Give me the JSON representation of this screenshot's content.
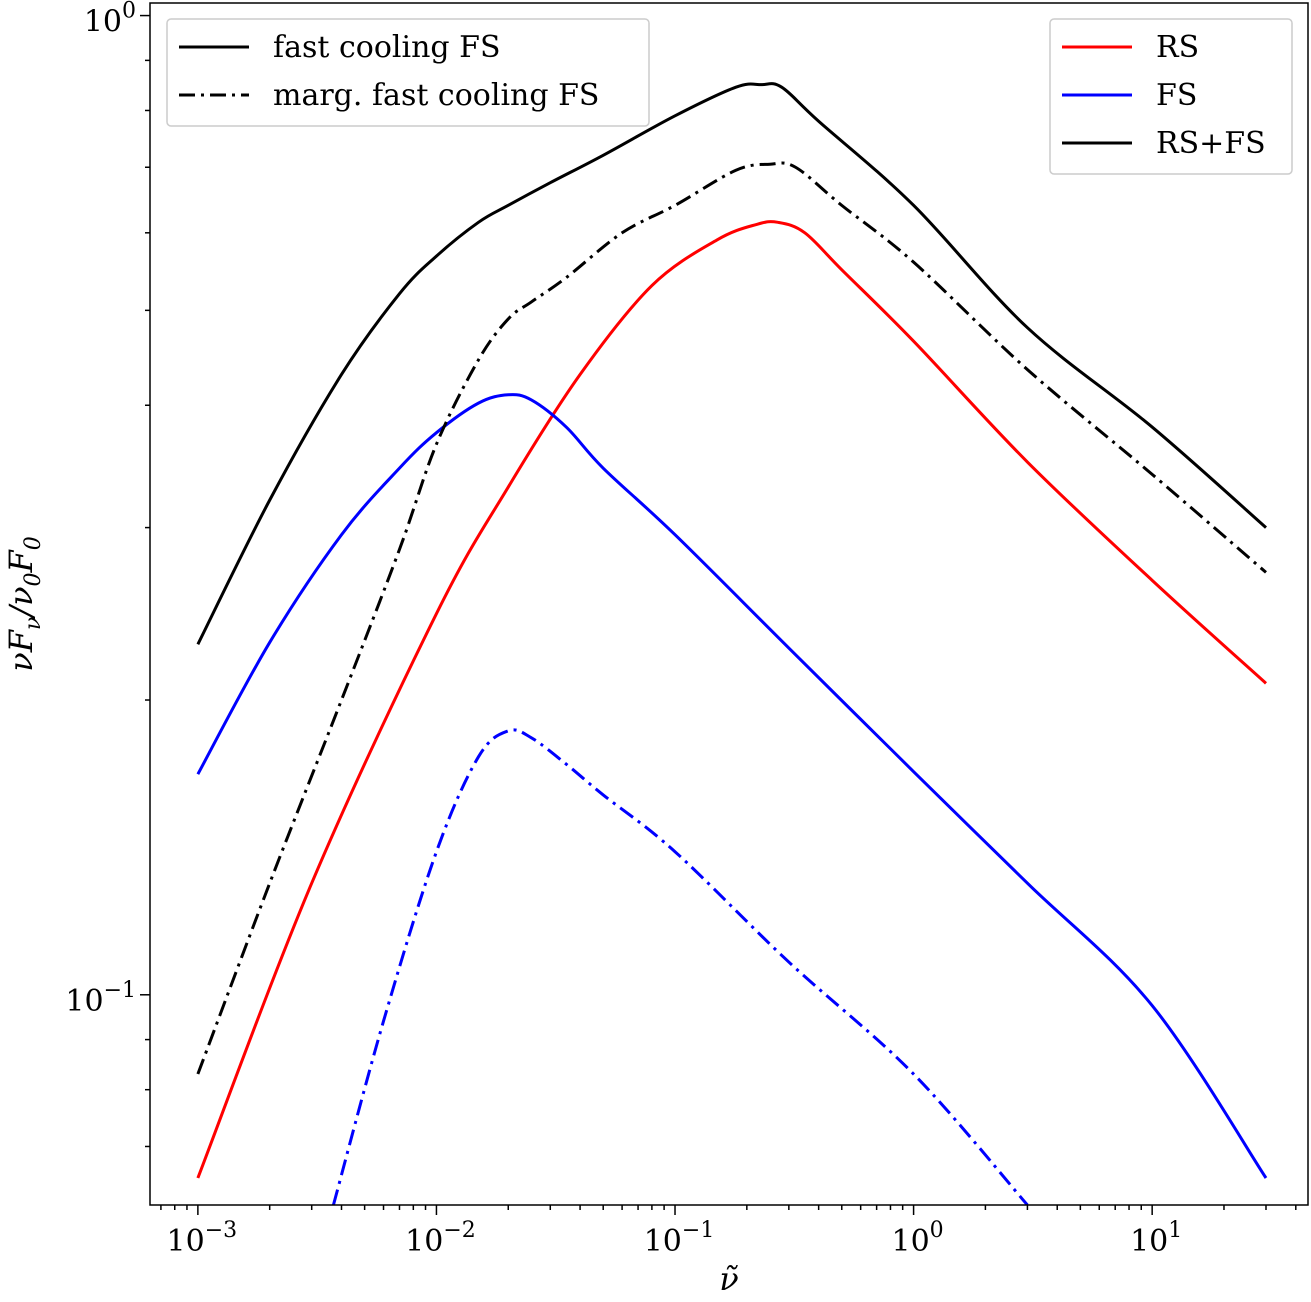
{
  "chart_data": {
    "type": "line",
    "xscale": "log",
    "yscale": "log",
    "xlim": [
      0.00063,
      45
    ],
    "ylim": [
      0.061,
      1.03
    ],
    "xlabel": "ν̃",
    "ylabel": "νF_ν/ν_0F_0",
    "x_ticks": [
      {
        "value": 0.001,
        "base": "10",
        "exp": "−3"
      },
      {
        "value": 0.01,
        "base": "10",
        "exp": "−2"
      },
      {
        "value": 0.1,
        "base": "10",
        "exp": "−1"
      },
      {
        "value": 1,
        "base": "10",
        "exp": "0"
      },
      {
        "value": 10,
        "base": "10",
        "exp": "1"
      }
    ],
    "y_ticks": [
      {
        "value": 0.1,
        "base": "10",
        "exp": "−1"
      },
      {
        "value": 1,
        "base": "10",
        "exp": "0"
      }
    ],
    "series": [
      {
        "name": "RS",
        "color": "#ff0000",
        "dash": "solid",
        "x": [
          0.001,
          0.003,
          0.01,
          0.02,
          0.04,
          0.08,
          0.15,
          0.22,
          0.27,
          0.35,
          0.5,
          1,
          3,
          10,
          30
        ],
        "y": [
          0.065,
          0.13,
          0.245,
          0.33,
          0.43,
          0.53,
          0.59,
          0.612,
          0.615,
          0.6,
          0.55,
          0.465,
          0.35,
          0.265,
          0.208
        ]
      },
      {
        "name": "FS",
        "color": "#0000ff",
        "dash": "solid",
        "x": [
          0.001,
          0.002,
          0.004,
          0.007,
          0.01,
          0.015,
          0.02,
          0.025,
          0.035,
          0.05,
          0.1,
          0.3,
          1,
          3,
          10,
          30
        ],
        "y": [
          0.168,
          0.229,
          0.295,
          0.345,
          0.375,
          0.402,
          0.41,
          0.405,
          0.38,
          0.345,
          0.295,
          0.226,
          0.169,
          0.13,
          0.0975,
          0.065
        ]
      },
      {
        "name": "RS+FS",
        "color": "#000000",
        "dash": "solid",
        "x": [
          0.001,
          0.002,
          0.004,
          0.007,
          0.01,
          0.015,
          0.02,
          0.03,
          0.05,
          0.1,
          0.18,
          0.23,
          0.28,
          0.4,
          1,
          3,
          10,
          30
        ],
        "y": [
          0.228,
          0.32,
          0.43,
          0.52,
          0.568,
          0.615,
          0.64,
          0.675,
          0.72,
          0.79,
          0.845,
          0.85,
          0.845,
          0.78,
          0.64,
          0.48,
          0.38,
          0.3
        ]
      },
      {
        "name": "marg. fast cooling FS",
        "color": "#000000",
        "dash": "dashdot",
        "x": [
          0.001,
          0.002,
          0.004,
          0.007,
          0.01,
          0.015,
          0.02,
          0.025,
          0.035,
          0.06,
          0.1,
          0.18,
          0.25,
          0.32,
          0.5,
          1,
          3,
          10,
          30
        ],
        "y": [
          0.083,
          0.13,
          0.2,
          0.285,
          0.365,
          0.445,
          0.49,
          0.51,
          0.54,
          0.6,
          0.64,
          0.695,
          0.705,
          0.7,
          0.64,
          0.56,
          0.435,
          0.34,
          0.27
        ]
      },
      {
        "name": "FS (marg. fast cooling)",
        "color": "#0000ff",
        "dash": "dashdot",
        "x": [
          0.0037,
          0.006,
          0.01,
          0.015,
          0.02,
          0.025,
          0.035,
          0.05,
          0.1,
          0.3,
          1,
          3
        ],
        "y": [
          0.061,
          0.094,
          0.14,
          0.175,
          0.186,
          0.183,
          0.172,
          0.16,
          0.14,
          0.108,
          0.083,
          0.061
        ]
      }
    ],
    "legends": [
      {
        "position": "upper left",
        "entries": [
          {
            "label": "fast cooling FS",
            "color": "#000000",
            "dash": "solid"
          },
          {
            "label": "marg. fast cooling FS",
            "color": "#000000",
            "dash": "dashdot"
          }
        ]
      },
      {
        "position": "upper right",
        "entries": [
          {
            "label": "RS",
            "color": "#ff0000",
            "dash": "solid"
          },
          {
            "label": "FS",
            "color": "#0000ff",
            "dash": "solid"
          },
          {
            "label": "RS+FS",
            "color": "#000000",
            "dash": "solid"
          }
        ]
      }
    ]
  }
}
